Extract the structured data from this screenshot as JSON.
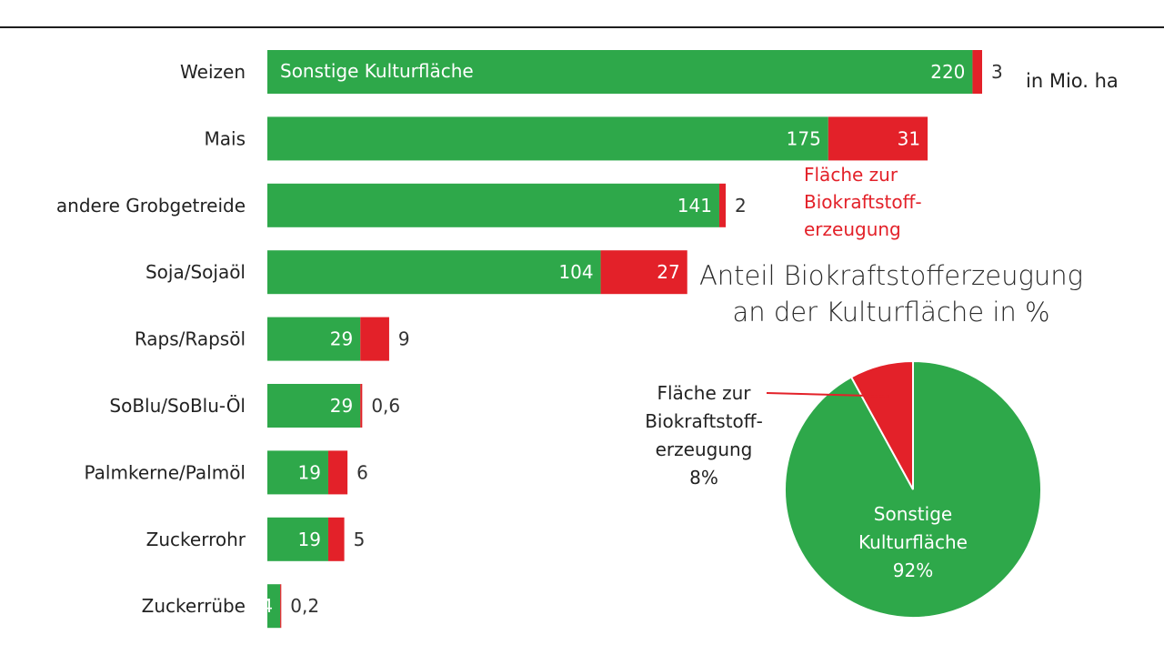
{
  "chart_data": [
    {
      "type": "bar",
      "orientation": "horizontal",
      "stacked": true,
      "categories": [
        "Weizen",
        "Mais",
        "andere Grobgetreide",
        "Soja/Sojaöl",
        "Raps/Rapsöl",
        "SoBlu/SoBlu-Öl",
        "Palmkerne/Palmöl",
        "Zuckerrohr",
        "Zuckerrübe"
      ],
      "series": [
        {
          "name": "Sonstige Kulturfläche",
          "values": [
            220,
            175,
            141,
            104,
            29,
            29,
            19,
            19,
            4
          ],
          "labels": [
            "220",
            "175",
            "141",
            "104",
            "29",
            "29",
            "19",
            "19",
            "4"
          ],
          "color": "#2ea84a"
        },
        {
          "name": "Fläche zur Biokraftstofferzeugung",
          "values": [
            3,
            31,
            2,
            27,
            9,
            0.6,
            6,
            5,
            0.2
          ],
          "labels": [
            "3",
            "31",
            "2",
            "27",
            "9",
            "0,6",
            "6",
            "5",
            "0,2"
          ],
          "color": "#e32129"
        }
      ],
      "unit": "in Mio. ha",
      "xlim": [
        0,
        223
      ]
    },
    {
      "type": "pie",
      "title_lines": [
        "Anteil Biokraftstofferzeugung",
        "an der Kulturfläche in %"
      ],
      "slices": [
        {
          "name_lines": [
            "Sonstige",
            "Kulturfläche"
          ],
          "value": 92,
          "value_label": "92%",
          "color": "#2ea84a"
        },
        {
          "name_lines": [
            "Fläche zur",
            "Biokraftstoff-",
            "erzeugung"
          ],
          "value": 8,
          "value_label": "8%",
          "color": "#e32129"
        }
      ]
    }
  ],
  "labels": {
    "bar_legend_green": "Sonstige Kulturfläche",
    "unit": "in Mio. ha",
    "red_note": [
      "Fläche zur",
      "Biokraftstoff-",
      "erzeugung"
    ]
  }
}
